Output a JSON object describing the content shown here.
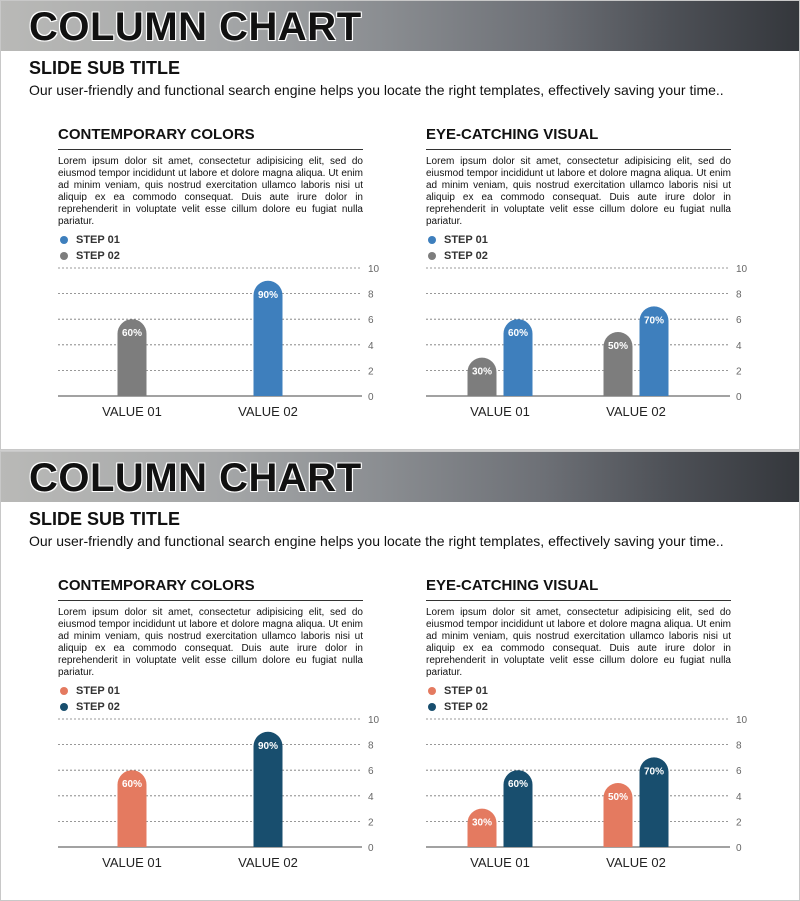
{
  "slides": [
    {
      "title": "COLUMN CHART",
      "subtitle": "SLIDE SUB TITLE",
      "intro": "Our user-friendly and functional search engine helps you locate the right templates, effectively saving your time..",
      "colors": {
        "step1": "#3e7fbd",
        "step2": "#7d7d7d"
      },
      "left": {
        "heading": "CONTEMPORARY COLORS",
        "body": "Lorem ipsum dolor sit amet, consectetur adipisicing elit, sed do eiusmod tempor incididunt ut labore et dolore magna aliqua. Ut enim ad minim veniam, quis nostrud exercitation ullamco laboris nisi ut aliquip ex ea commodo consequat. Duis aute irure dolor in reprehenderit in voluptate velit esse cillum dolore eu fugiat nulla pariatur.",
        "legend": [
          "STEP 01",
          "STEP 02"
        ]
      },
      "right": {
        "heading": "EYE-CATCHING VISUAL",
        "body": "Lorem ipsum dolor sit amet, consectetur adipisicing elit, sed do eiusmod tempor incididunt ut labore et dolore magna aliqua. Ut enim ad minim veniam, quis nostrud exercitation ullamco laboris nisi ut aliquip ex ea commodo consequat. Duis aute irure dolor in reprehenderit in voluptate velit esse cillum dolore eu fugiat nulla pariatur.",
        "legend": [
          "STEP 01",
          "STEP 02"
        ]
      }
    },
    {
      "title": "COLUMN CHART",
      "subtitle": "SLIDE SUB TITLE",
      "intro": "Our user-friendly and functional search engine helps you locate the right templates, effectively saving your time..",
      "colors": {
        "step1": "#e47a60",
        "step2": "#184e6e"
      },
      "left": {
        "heading": "CONTEMPORARY COLORS",
        "body": "Lorem ipsum dolor sit amet, consectetur adipisicing elit, sed do eiusmod tempor incididunt ut labore et dolore magna aliqua. Ut enim ad minim veniam, quis nostrud exercitation ullamco laboris nisi ut aliquip ex ea commodo consequat. Duis aute irure dolor in reprehenderit in voluptate velit esse cillum dolore eu fugiat nulla pariatur.",
        "legend": [
          "STEP 01",
          "STEP 02"
        ]
      },
      "right": {
        "heading": "EYE-CATCHING VISUAL",
        "body": "Lorem ipsum dolor sit amet, consectetur adipisicing elit, sed do eiusmod tempor incididunt ut labore et dolore magna aliqua. Ut enim ad minim veniam, quis nostrud exercitation ullamco laboris nisi ut aliquip ex ea commodo consequat. Duis aute irure dolor in reprehenderit in voluptate velit esse cillum dolore eu fugiat nulla pariatur.",
        "legend": [
          "STEP 01",
          "STEP 02"
        ]
      }
    }
  ],
  "chart_data": [
    {
      "type": "bar",
      "categories": [
        "VALUE 01",
        "VALUE 02"
      ],
      "ylim": [
        0,
        10
      ],
      "yticks": [
        0,
        2,
        4,
        6,
        8,
        10
      ],
      "grid": true,
      "bars": [
        {
          "category": "VALUE 01",
          "value": 6,
          "label": "60%",
          "color": "#7d7d7d"
        },
        {
          "category": "VALUE 02",
          "value": 9,
          "label": "90%",
          "color": "#3e7fbd"
        }
      ]
    },
    {
      "type": "bar",
      "categories": [
        "VALUE 01",
        "VALUE 02"
      ],
      "ylim": [
        0,
        10
      ],
      "yticks": [
        0,
        2,
        4,
        6,
        8,
        10
      ],
      "grid": true,
      "series": [
        {
          "name": "STEP 02",
          "values": [
            3,
            5
          ],
          "labels": [
            "30%",
            "50%"
          ],
          "color": "#7d7d7d"
        },
        {
          "name": "STEP 01",
          "values": [
            6,
            7
          ],
          "labels": [
            "60%",
            "70%"
          ],
          "color": "#3e7fbd"
        }
      ]
    },
    {
      "type": "bar",
      "categories": [
        "VALUE 01",
        "VALUE 02"
      ],
      "ylim": [
        0,
        10
      ],
      "yticks": [
        0,
        2,
        4,
        6,
        8,
        10
      ],
      "grid": true,
      "bars": [
        {
          "category": "VALUE 01",
          "value": 6,
          "label": "60%",
          "color": "#e47a60"
        },
        {
          "category": "VALUE 02",
          "value": 9,
          "label": "90%",
          "color": "#184e6e"
        }
      ]
    },
    {
      "type": "bar",
      "categories": [
        "VALUE 01",
        "VALUE 02"
      ],
      "ylim": [
        0,
        10
      ],
      "yticks": [
        0,
        2,
        4,
        6,
        8,
        10
      ],
      "grid": true,
      "series": [
        {
          "name": "STEP 01",
          "values": [
            3,
            5
          ],
          "labels": [
            "30%",
            "50%"
          ],
          "color": "#e47a60"
        },
        {
          "name": "STEP 02",
          "values": [
            6,
            7
          ],
          "labels": [
            "60%",
            "70%"
          ],
          "color": "#184e6e"
        }
      ]
    }
  ]
}
